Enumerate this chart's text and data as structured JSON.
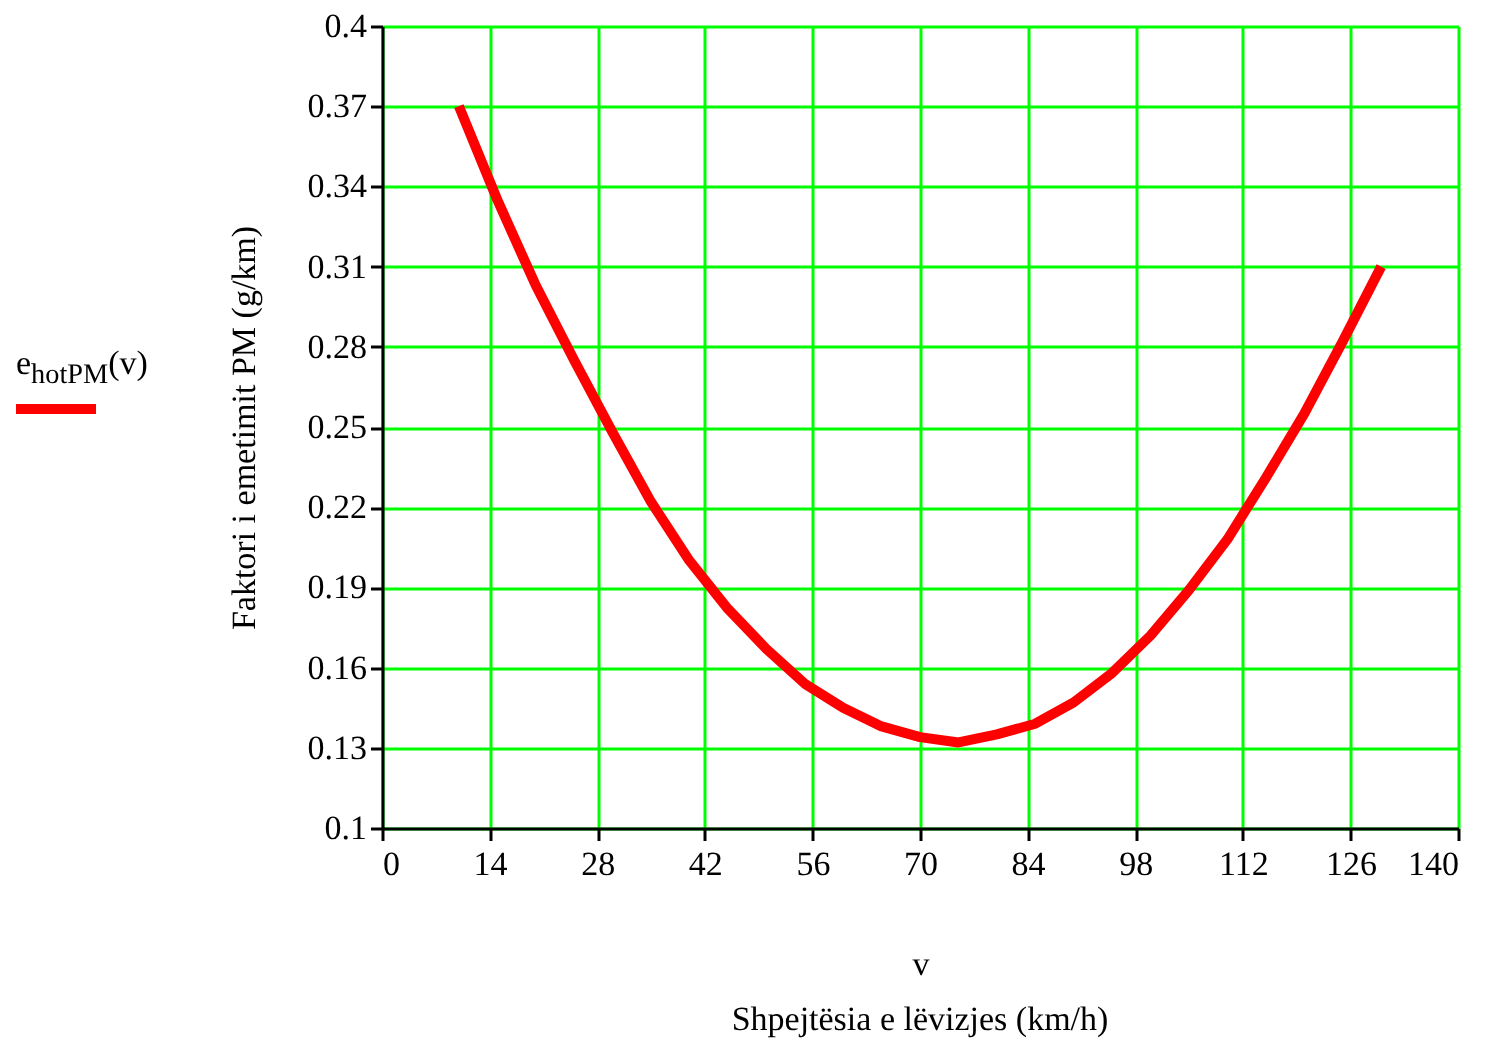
{
  "chart_data": {
    "type": "line",
    "xlabel": "v",
    "ylabel": "Faktori i emetimit PM (g/km)",
    "annotations": [
      "Shpejtësia e lëvizjes (km/h)"
    ],
    "x": [
      10,
      15,
      20,
      25,
      30,
      35,
      40,
      45,
      50,
      55,
      60,
      65,
      70,
      75,
      80,
      85,
      90,
      95,
      100,
      105,
      110,
      115,
      120,
      125,
      130
    ],
    "series": [
      {
        "name": "e$_{hotPM}$(v)",
        "color": "#ff0000",
        "values": [
          0.37,
          0.335,
          0.303,
          0.275,
          0.248,
          0.222,
          0.2,
          0.182,
          0.167,
          0.154,
          0.145,
          0.138,
          0.134,
          0.132,
          0.135,
          0.139,
          0.147,
          0.158,
          0.172,
          0.189,
          0.208,
          0.231,
          0.255,
          0.282,
          0.31
        ]
      }
    ],
    "xlim": [
      0,
      140
    ],
    "xticks": [
      0,
      14,
      28,
      42,
      56,
      70,
      84,
      98,
      112,
      126,
      140
    ],
    "ylim": [
      0.1,
      0.4
    ],
    "yticks": [
      0.1,
      0.13,
      0.16,
      0.19,
      0.22,
      0.25,
      0.28,
      0.31,
      0.34,
      0.37,
      0.4
    ],
    "grid": true,
    "legend": "left",
    "line_style": "solid"
  }
}
